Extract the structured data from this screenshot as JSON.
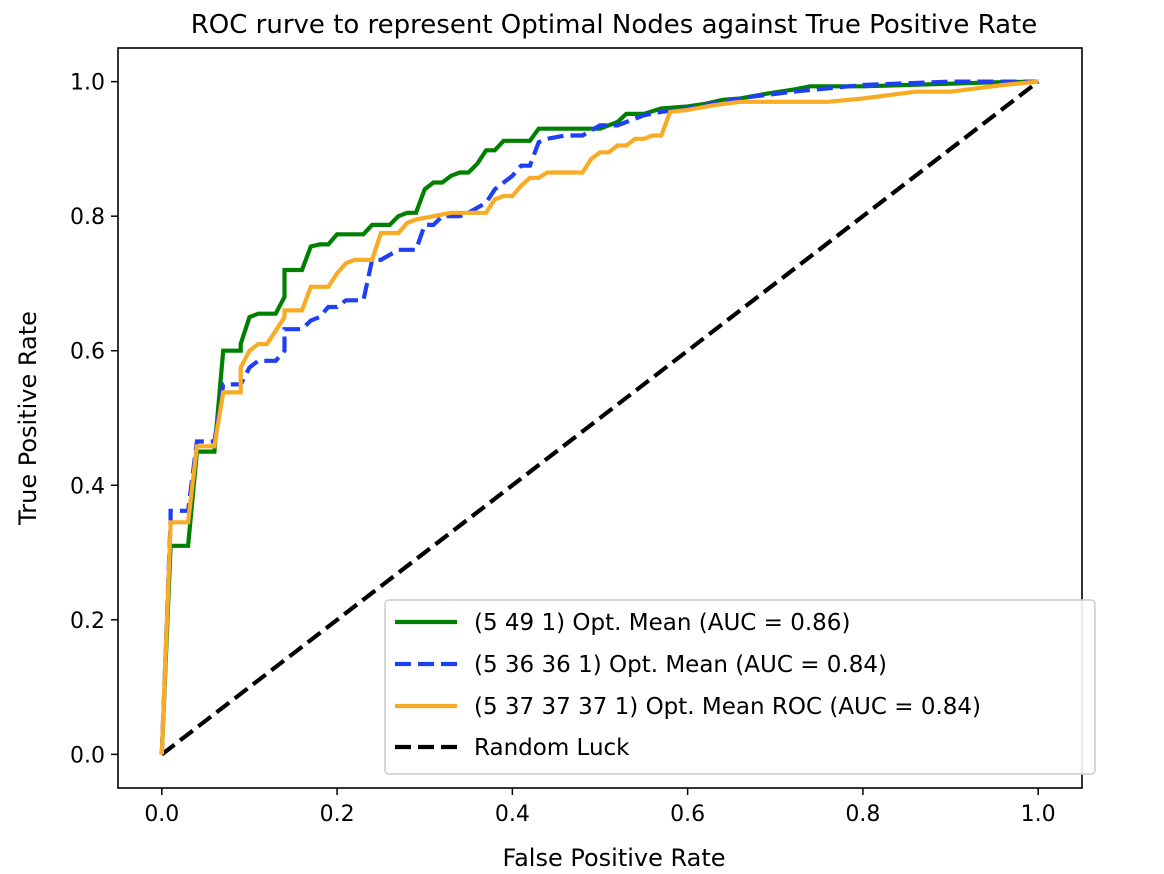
{
  "chart_data": {
    "type": "line",
    "title": "ROC rurve to represent Optimal Nodes against True Positive Rate",
    "xlabel": "False Positive Rate",
    "ylabel": "True Positive Rate",
    "xlim": [
      -0.05,
      1.05
    ],
    "ylim": [
      -0.05,
      1.05
    ],
    "xticks": [
      "0.0",
      "0.2",
      "0.4",
      "0.6",
      "0.8",
      "1.0"
    ],
    "yticks": [
      "0.0",
      "0.2",
      "0.4",
      "0.6",
      "0.8",
      "1.0"
    ],
    "grid": false,
    "legend_position": "lower-right",
    "series": [
      {
        "name": "(5 49 1) Opt. Mean (AUC = 0.86)",
        "color": "#008000",
        "dash": "solid",
        "x": [
          0,
          0.01,
          0.01,
          0.03,
          0.03,
          0.04,
          0.04,
          0.06,
          0.06,
          0.07,
          0.07,
          0.09,
          0.09,
          0.1,
          0.11,
          0.13,
          0.14,
          0.14,
          0.16,
          0.16,
          0.17,
          0.18,
          0.19,
          0.2,
          0.21,
          0.23,
          0.24,
          0.26,
          0.27,
          0.28,
          0.29,
          0.3,
          0.31,
          0.32,
          0.33,
          0.34,
          0.35,
          0.36,
          0.37,
          0.38,
          0.39,
          0.4,
          0.42,
          0.43,
          0.45,
          0.47,
          0.5,
          0.52,
          0.53,
          0.55,
          0.57,
          0.6,
          0.62,
          0.64,
          0.66,
          0.69,
          0.72,
          0.74,
          0.8,
          0.85,
          0.9,
          0.95,
          1.0
        ],
        "y": [
          0,
          0.31,
          0.31,
          0.31,
          0.31,
          0.45,
          0.45,
          0.45,
          0.45,
          0.6,
          0.6,
          0.6,
          0.61,
          0.65,
          0.655,
          0.655,
          0.68,
          0.72,
          0.72,
          0.72,
          0.755,
          0.758,
          0.758,
          0.773,
          0.773,
          0.773,
          0.787,
          0.787,
          0.8,
          0.805,
          0.805,
          0.84,
          0.85,
          0.85,
          0.86,
          0.865,
          0.865,
          0.878,
          0.898,
          0.898,
          0.912,
          0.912,
          0.912,
          0.93,
          0.93,
          0.93,
          0.93,
          0.94,
          0.952,
          0.952,
          0.96,
          0.963,
          0.967,
          0.973,
          0.975,
          0.982,
          0.988,
          0.993,
          0.993,
          0.995,
          0.997,
          0.999,
          1.0
        ]
      },
      {
        "name": "(5 36 36 1) Opt. Mean (AUC = 0.84)",
        "color": "#1f3ff5",
        "dash": "dashed",
        "x": [
          0,
          0.01,
          0.01,
          0.03,
          0.03,
          0.04,
          0.04,
          0.06,
          0.06,
          0.07,
          0.07,
          0.09,
          0.1,
          0.11,
          0.13,
          0.14,
          0.14,
          0.16,
          0.17,
          0.18,
          0.19,
          0.2,
          0.21,
          0.23,
          0.24,
          0.25,
          0.27,
          0.28,
          0.29,
          0.3,
          0.31,
          0.32,
          0.34,
          0.35,
          0.37,
          0.38,
          0.4,
          0.41,
          0.42,
          0.43,
          0.44,
          0.46,
          0.48,
          0.5,
          0.52,
          0.55,
          0.57,
          0.6,
          0.63,
          0.67,
          0.72,
          0.8,
          0.9,
          1.0
        ],
        "y": [
          0,
          0.35,
          0.362,
          0.362,
          0.362,
          0.465,
          0.465,
          0.465,
          0.465,
          0.55,
          0.55,
          0.55,
          0.575,
          0.585,
          0.585,
          0.6,
          0.632,
          0.632,
          0.645,
          0.65,
          0.665,
          0.665,
          0.675,
          0.675,
          0.735,
          0.735,
          0.75,
          0.75,
          0.75,
          0.787,
          0.787,
          0.8,
          0.8,
          0.805,
          0.82,
          0.84,
          0.86,
          0.875,
          0.875,
          0.91,
          0.915,
          0.92,
          0.92,
          0.935,
          0.935,
          0.95,
          0.955,
          0.96,
          0.968,
          0.977,
          0.985,
          0.995,
          1.0,
          1.0
        ]
      },
      {
        "name": "(5 37 37 37 1) Opt. Mean ROC (AUC = 0.84)",
        "color": "#f8ab24",
        "dash": "solid",
        "x": [
          0,
          0.01,
          0.01,
          0.03,
          0.03,
          0.04,
          0.04,
          0.06,
          0.06,
          0.07,
          0.07,
          0.09,
          0.09,
          0.1,
          0.11,
          0.12,
          0.14,
          0.14,
          0.16,
          0.17,
          0.19,
          0.2,
          0.21,
          0.22,
          0.23,
          0.24,
          0.25,
          0.27,
          0.28,
          0.29,
          0.31,
          0.33,
          0.35,
          0.37,
          0.38,
          0.39,
          0.4,
          0.41,
          0.42,
          0.43,
          0.44,
          0.46,
          0.48,
          0.49,
          0.5,
          0.51,
          0.52,
          0.53,
          0.54,
          0.55,
          0.56,
          0.57,
          0.58,
          0.6,
          0.63,
          0.66,
          0.7,
          0.76,
          0.8,
          0.86,
          0.9,
          0.96,
          1.0
        ],
        "y": [
          0,
          0.34,
          0.345,
          0.345,
          0.345,
          0.458,
          0.458,
          0.458,
          0.458,
          0.538,
          0.538,
          0.538,
          0.575,
          0.6,
          0.61,
          0.61,
          0.65,
          0.66,
          0.66,
          0.695,
          0.695,
          0.715,
          0.73,
          0.735,
          0.735,
          0.735,
          0.775,
          0.775,
          0.79,
          0.795,
          0.8,
          0.805,
          0.805,
          0.805,
          0.825,
          0.83,
          0.83,
          0.845,
          0.857,
          0.857,
          0.865,
          0.865,
          0.865,
          0.885,
          0.895,
          0.895,
          0.905,
          0.905,
          0.915,
          0.915,
          0.92,
          0.92,
          0.955,
          0.958,
          0.965,
          0.97,
          0.97,
          0.97,
          0.975,
          0.985,
          0.985,
          0.995,
          1.0
        ]
      },
      {
        "name": "Random Luck",
        "color": "#000000",
        "dash": "dashed",
        "x": [
          0,
          1
        ],
        "y": [
          0,
          1
        ]
      }
    ]
  }
}
